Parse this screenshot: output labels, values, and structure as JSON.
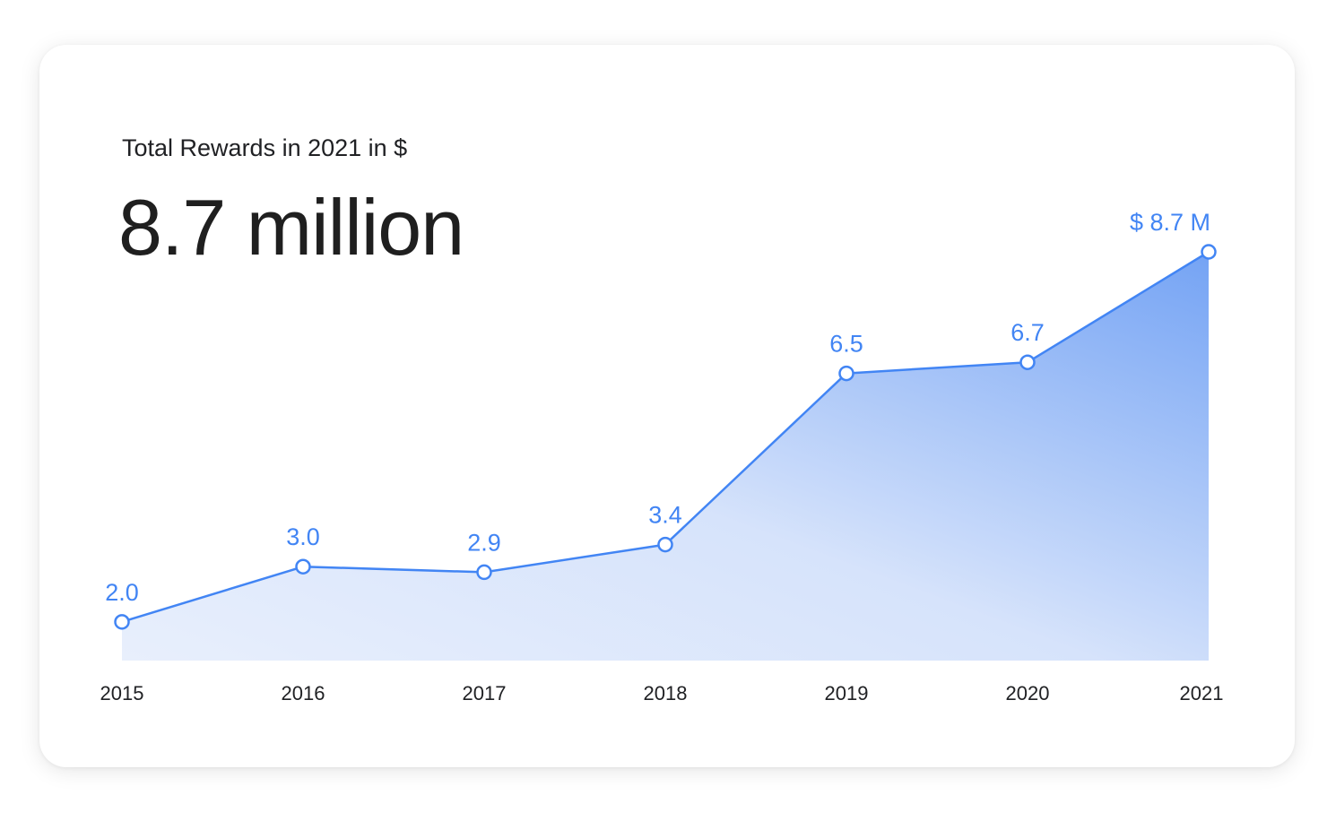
{
  "card": {
    "subtitle": "Total Rewards in 2021 in $",
    "headline": "8.7 million"
  },
  "chart_data": {
    "type": "area",
    "x": [
      "2015",
      "2016",
      "2017",
      "2018",
      "2019",
      "2020",
      "2021"
    ],
    "values": [
      2.0,
      3.0,
      2.9,
      3.4,
      6.5,
      6.7,
      8.7
    ],
    "data_labels": [
      "2.0",
      "3.0",
      "2.9",
      "3.4",
      "6.5",
      "6.7",
      "$ 8.7 M"
    ],
    "ylim": [
      1.3,
      8.7
    ],
    "grid": false,
    "colors": {
      "line": "#4285f4",
      "label": "#4285f4",
      "fill_light": "#e8effc",
      "fill_dark": "#74a3f4",
      "marker_fill": "#ffffff"
    }
  }
}
